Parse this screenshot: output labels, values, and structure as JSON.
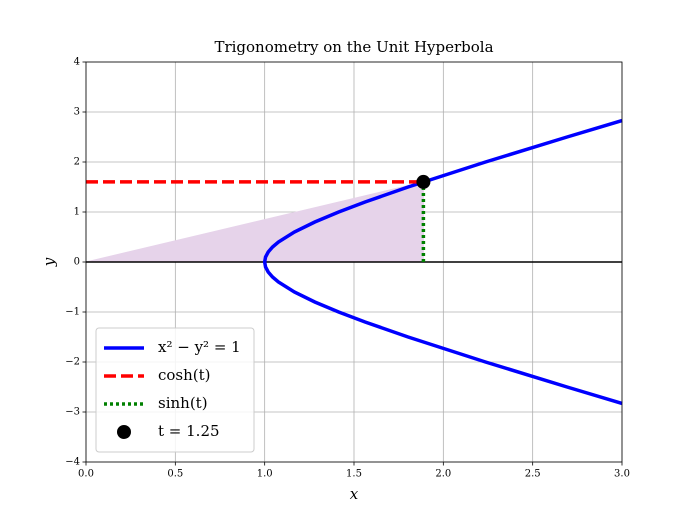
{
  "chart_data": {
    "type": "line",
    "title": "Trigonometry on the Unit Hyperbola",
    "xlabel": "x",
    "ylabel": "y",
    "xlim": [
      0,
      3
    ],
    "ylim": [
      -4,
      4
    ],
    "xticks": [
      {
        "value": 0,
        "label": "0.0"
      },
      0.5,
      {
        "value": 1,
        "label": "1.0"
      },
      1.5,
      {
        "value": 2,
        "label": "2.0"
      },
      2.5,
      {
        "value": 3,
        "label": "3.0"
      }
    ],
    "yticks": [
      {
        "value": -4,
        "label": "−4"
      },
      {
        "value": -3,
        "label": "−3"
      },
      {
        "value": -2,
        "label": "−2"
      },
      {
        "value": -1,
        "label": "−1"
      },
      0,
      1,
      2,
      3,
      4
    ],
    "grid": true,
    "hline": 0,
    "legend": "lower left",
    "shade_color": "#e6d3ea",
    "series": [
      {
        "name": "x² − y² = 1",
        "color": "#0000ff",
        "style": "solid",
        "x": [
          3,
          2.6926,
          2.2361,
          1.8028,
          1.562,
          1.4142,
          1.2806,
          1.1662,
          1.077,
          1.044,
          1.0198,
          1.005,
          1,
          1.005,
          1.0198,
          1.044,
          1.077,
          1.1662,
          1.2806,
          1.4142,
          1.562,
          1.8028,
          2.2361,
          2.6926,
          3
        ],
        "y": [
          -2.8284,
          -2.5,
          -2,
          -1.5,
          -1.2,
          -1,
          -0.8,
          -0.6,
          -0.4,
          -0.3,
          -0.2,
          -0.1,
          0,
          0.1,
          0.2,
          0.3,
          0.4,
          0.6,
          0.8,
          1,
          1.2,
          1.5,
          2,
          2.5,
          2.8284
        ]
      },
      {
        "name": "cosh(t)",
        "color": "#ff0000",
        "style": "dashed",
        "x": [
          0,
          1.8884
        ],
        "y": [
          1.6019,
          1.6019
        ]
      },
      {
        "name": "sinh(t)",
        "color": "#008000",
        "style": "dotted",
        "x": [
          1.8884,
          1.8884
        ],
        "y": [
          0,
          1.6019
        ]
      },
      {
        "name": "t = 1.25",
        "color": "#000000",
        "style": "marker",
        "x": [
          1.8884
        ],
        "y": [
          1.6019
        ]
      }
    ]
  }
}
